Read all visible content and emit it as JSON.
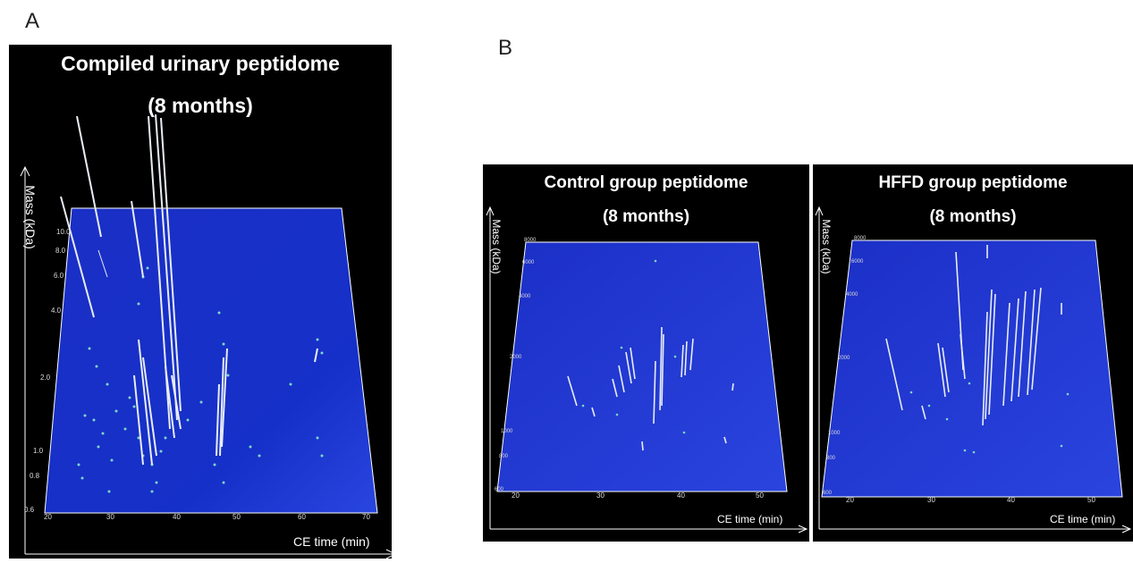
{
  "panel_labels": {
    "a": "A",
    "b": "B"
  },
  "panel_a": {
    "title_line1": "Compiled urinary peptidome",
    "title_line2": "(8 months)",
    "y_axis_label": "Mass (kDa)",
    "x_axis_label": "CE time (min)",
    "y_ticks": [
      "10.0",
      "8.0",
      "6.0",
      "4.0",
      "2.0",
      "1.0",
      "0.8",
      "0.6"
    ],
    "x_ticks": [
      "20",
      "30",
      "40",
      "50",
      "60",
      "70"
    ]
  },
  "panel_b_control": {
    "title_line1": "Control group peptidome",
    "title_line2": "(8 months)",
    "y_axis_label": "Mass (kDa)",
    "x_axis_label": "CE time (min)",
    "y_ticks": [
      "8000",
      "6000",
      "4000",
      "2000",
      "1000",
      "800",
      "600"
    ],
    "x_ticks": [
      "20",
      "30",
      "40",
      "50"
    ]
  },
  "panel_b_hffd": {
    "title_line1": "HFFD group peptidome",
    "title_line2": "(8 months)",
    "y_axis_label": "Mass (kDa)",
    "x_axis_label": "CE time (min)",
    "y_ticks": [
      "8000",
      "6000",
      "4000",
      "2000",
      "1000",
      "800",
      "600"
    ],
    "x_ticks": [
      "20",
      "30",
      "40",
      "50"
    ]
  },
  "colors": {
    "background": "#000000",
    "plane": "#1a2fd0",
    "peak": "#e8ecf4",
    "dot": "#7fd6c9"
  }
}
